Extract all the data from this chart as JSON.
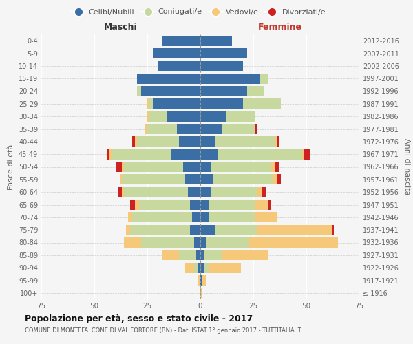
{
  "age_groups": [
    "100+",
    "95-99",
    "90-94",
    "85-89",
    "80-84",
    "75-79",
    "70-74",
    "65-69",
    "60-64",
    "55-59",
    "50-54",
    "45-49",
    "40-44",
    "35-39",
    "30-34",
    "25-29",
    "20-24",
    "15-19",
    "10-14",
    "5-9",
    "0-4"
  ],
  "birth_years": [
    "≤ 1916",
    "1917-1921",
    "1922-1926",
    "1927-1931",
    "1932-1936",
    "1937-1941",
    "1942-1946",
    "1947-1951",
    "1952-1956",
    "1957-1961",
    "1962-1966",
    "1967-1971",
    "1972-1976",
    "1977-1981",
    "1982-1986",
    "1987-1991",
    "1992-1996",
    "1997-2001",
    "2002-2006",
    "2007-2011",
    "2012-2016"
  ],
  "maschi": {
    "celibi": [
      0,
      0,
      1,
      2,
      3,
      5,
      4,
      5,
      6,
      7,
      8,
      14,
      10,
      11,
      16,
      22,
      28,
      30,
      20,
      22,
      18
    ],
    "coniugati": [
      0,
      0,
      2,
      8,
      25,
      28,
      28,
      24,
      30,
      30,
      28,
      28,
      20,
      14,
      8,
      2,
      2,
      0,
      0,
      0,
      0
    ],
    "vedovi": [
      0,
      1,
      4,
      8,
      8,
      2,
      2,
      2,
      1,
      1,
      1,
      1,
      1,
      1,
      1,
      1,
      0,
      0,
      0,
      0,
      0
    ],
    "divorziati": [
      0,
      0,
      0,
      0,
      0,
      0,
      0,
      2,
      2,
      0,
      3,
      1,
      1,
      0,
      0,
      0,
      0,
      0,
      0,
      0,
      0
    ]
  },
  "femmine": {
    "celibi": [
      0,
      1,
      2,
      2,
      3,
      7,
      4,
      4,
      5,
      6,
      5,
      8,
      7,
      10,
      12,
      20,
      22,
      28,
      20,
      22,
      15
    ],
    "coniugati": [
      0,
      0,
      2,
      8,
      20,
      20,
      22,
      22,
      22,
      28,
      28,
      40,
      28,
      16,
      14,
      18,
      8,
      4,
      0,
      0,
      0
    ],
    "vedovi": [
      1,
      2,
      15,
      22,
      42,
      35,
      10,
      6,
      2,
      2,
      2,
      1,
      1,
      0,
      0,
      0,
      0,
      0,
      0,
      0,
      0
    ],
    "divorziati": [
      0,
      0,
      0,
      0,
      0,
      1,
      0,
      1,
      2,
      2,
      2,
      3,
      1,
      1,
      0,
      0,
      0,
      0,
      0,
      0,
      0
    ]
  },
  "colors": {
    "celibi": "#3a6ea5",
    "coniugati": "#c8d9a0",
    "vedovi": "#f5c87a",
    "divorziati": "#cc2222"
  },
  "xlim": 75,
  "title": "Popolazione per età, sesso e stato civile - 2017",
  "subtitle": "COMUNE DI MONTEFALCONE DI VAL FORTORE (BN) - Dati ISTAT 1° gennaio 2017 - TUTTITALIA.IT",
  "ylabel_left": "Fasce di età",
  "ylabel_right": "Anni di nascita",
  "xlabel_maschi": "Maschi",
  "xlabel_femmine": "Femmine",
  "bg_color": "#f5f5f5",
  "legend_labels": [
    "Celibi/Nubili",
    "Coniugati/e",
    "Vedovi/e",
    "Divorziati/e"
  ]
}
